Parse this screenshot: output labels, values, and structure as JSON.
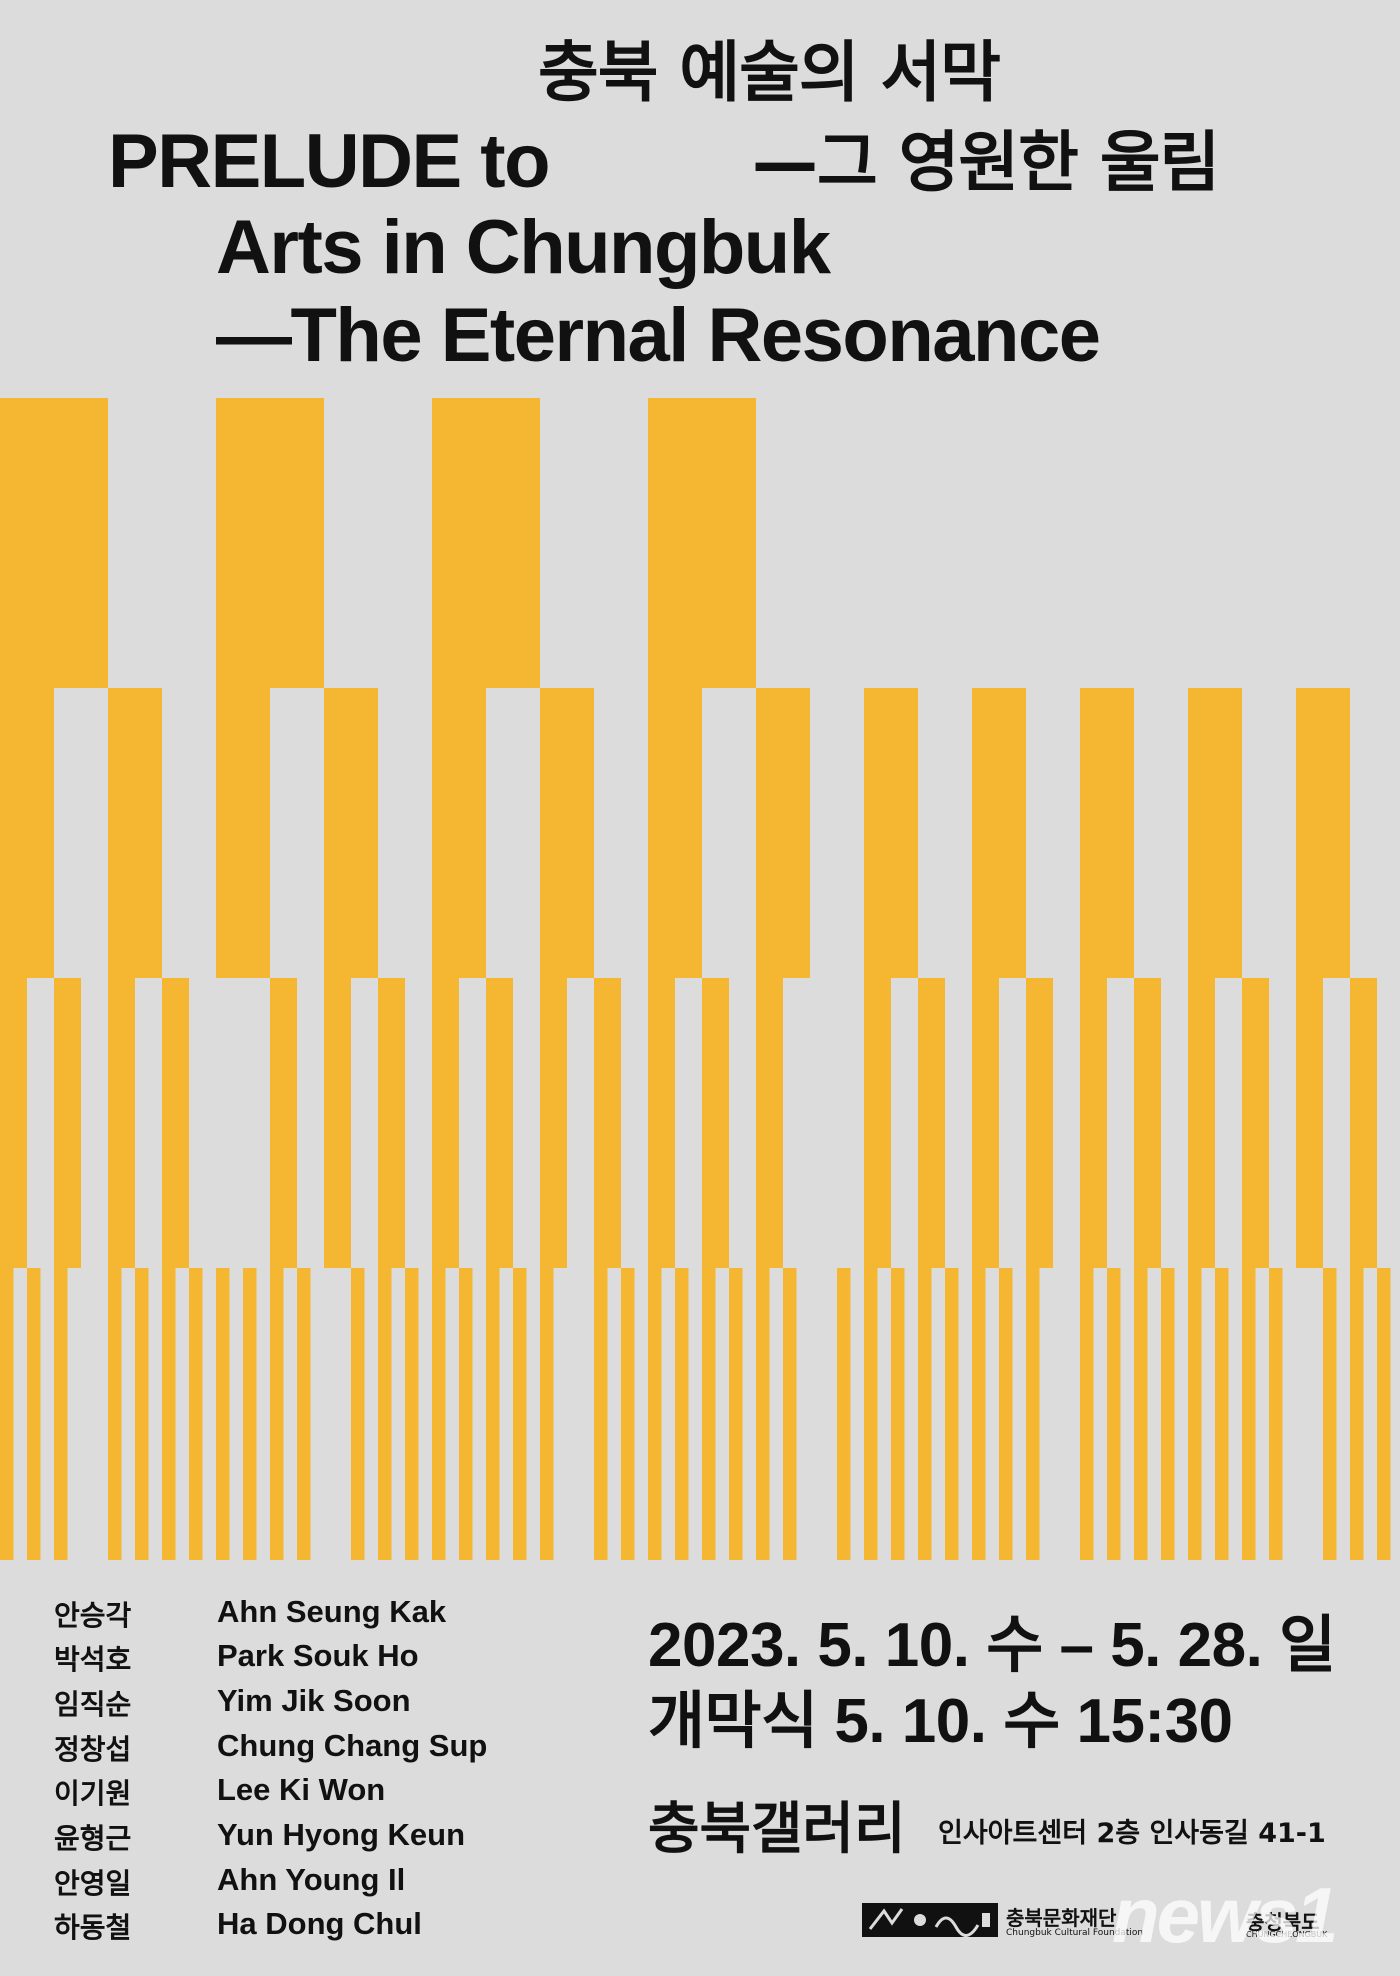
{
  "title": {
    "ko_line1": "충북 예술의 서막",
    "ko_line2": "—그 영원한 울림",
    "en_line1": "PRELUDE to",
    "en_line2": "Arts in Chungbuk",
    "en_line3": "—The Eternal Resonance"
  },
  "colors": {
    "background": "#dcdcdc",
    "accent_yellow": "#f5b731",
    "text": "#111111"
  },
  "artists": [
    {
      "ko": "안승각",
      "en": "Ahn Seung Kak"
    },
    {
      "ko": "박석호",
      "en": "Park Souk Ho"
    },
    {
      "ko": "임직순",
      "en": "Yim Jik Soon"
    },
    {
      "ko": "정창섭",
      "en": "Chung Chang Sup"
    },
    {
      "ko": "이기원",
      "en": "Lee Ki Won"
    },
    {
      "ko": "윤형근",
      "en": "Yun Hyong Keun"
    },
    {
      "ko": "안영일",
      "en": "Ahn Young Il"
    },
    {
      "ko": "하동철",
      "en": "Ha Dong Chul"
    }
  ],
  "schedule": {
    "dates": "2023. 5. 10. 수 – 5. 28. 일",
    "opening": "개막식  5. 10. 수  15:30"
  },
  "venue": {
    "name": "충북갤러리",
    "address": "인사아트센터 2층 인사동길 41-1"
  },
  "footer": {
    "foundation_ko": "충북문화재단",
    "foundation_en": "Chungbuk Cultural Foundation",
    "province_ko": "충청북도",
    "province_en": "CHUNGCHEONGBUK",
    "watermark": "news1",
    "logo_icon": "foundation-logo-icon"
  }
}
